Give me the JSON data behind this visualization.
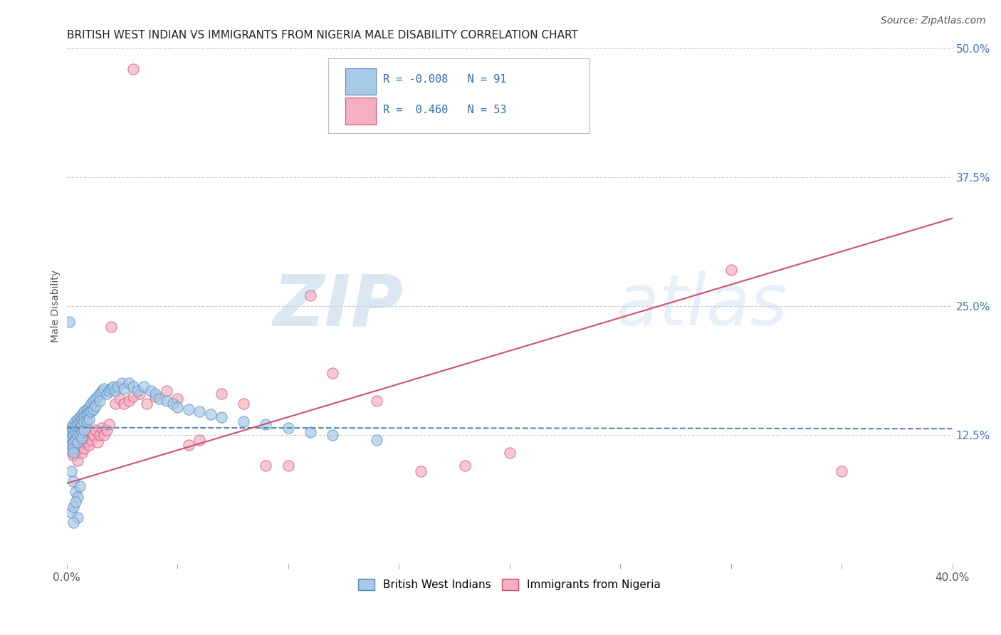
{
  "title": "BRITISH WEST INDIAN VS IMMIGRANTS FROM NIGERIA MALE DISABILITY CORRELATION CHART",
  "source": "Source: ZipAtlas.com",
  "ylabel": "Male Disability",
  "x_min": 0.0,
  "x_max": 0.4,
  "y_min": 0.0,
  "y_max": 0.5,
  "y_ticks_right": [
    0.125,
    0.25,
    0.375,
    0.5
  ],
  "y_tick_labels_right": [
    "12.5%",
    "25.0%",
    "37.5%",
    "50.0%"
  ],
  "color_blue": "#a8c8e8",
  "color_pink": "#f4b0c0",
  "line_blue": "#5588bb",
  "line_pink": "#d05070",
  "watermark_zip": "ZIP",
  "watermark_atlas": "atlas",
  "background": "#ffffff",
  "grid_color": "#cccccc",
  "blue_R": -0.008,
  "blue_N": 91,
  "pink_R": 0.46,
  "pink_N": 53,
  "blue_line_y0": 0.132,
  "blue_line_y1": 0.131,
  "pink_line_y0": 0.078,
  "pink_line_y1": 0.335,
  "blue_scatter_x": [
    0.001,
    0.001,
    0.001,
    0.002,
    0.002,
    0.002,
    0.002,
    0.003,
    0.003,
    0.003,
    0.003,
    0.003,
    0.003,
    0.004,
    0.004,
    0.004,
    0.004,
    0.005,
    0.005,
    0.005,
    0.005,
    0.005,
    0.006,
    0.006,
    0.006,
    0.006,
    0.007,
    0.007,
    0.007,
    0.007,
    0.007,
    0.008,
    0.008,
    0.008,
    0.008,
    0.009,
    0.009,
    0.009,
    0.01,
    0.01,
    0.01,
    0.011,
    0.011,
    0.012,
    0.012,
    0.013,
    0.013,
    0.014,
    0.015,
    0.015,
    0.016,
    0.017,
    0.018,
    0.019,
    0.02,
    0.021,
    0.022,
    0.023,
    0.025,
    0.026,
    0.028,
    0.03,
    0.032,
    0.035,
    0.038,
    0.04,
    0.042,
    0.045,
    0.048,
    0.05,
    0.055,
    0.06,
    0.065,
    0.07,
    0.08,
    0.09,
    0.1,
    0.11,
    0.12,
    0.14,
    0.001,
    0.002,
    0.003,
    0.004,
    0.005,
    0.006,
    0.002,
    0.003,
    0.004,
    0.005,
    0.003
  ],
  "blue_scatter_y": [
    0.13,
    0.125,
    0.118,
    0.132,
    0.128,
    0.122,
    0.115,
    0.135,
    0.13,
    0.125,
    0.118,
    0.112,
    0.108,
    0.138,
    0.133,
    0.128,
    0.12,
    0.14,
    0.135,
    0.13,
    0.125,
    0.118,
    0.142,
    0.137,
    0.132,
    0.125,
    0.145,
    0.14,
    0.135,
    0.128,
    0.122,
    0.148,
    0.143,
    0.138,
    0.13,
    0.15,
    0.145,
    0.138,
    0.152,
    0.147,
    0.14,
    0.155,
    0.148,
    0.158,
    0.15,
    0.16,
    0.153,
    0.162,
    0.165,
    0.158,
    0.168,
    0.17,
    0.165,
    0.168,
    0.17,
    0.172,
    0.168,
    0.172,
    0.175,
    0.17,
    0.175,
    0.172,
    0.168,
    0.172,
    0.168,
    0.165,
    0.16,
    0.158,
    0.155,
    0.152,
    0.15,
    0.148,
    0.145,
    0.142,
    0.138,
    0.135,
    0.132,
    0.128,
    0.125,
    0.12,
    0.235,
    0.09,
    0.08,
    0.07,
    0.065,
    0.075,
    0.05,
    0.055,
    0.06,
    0.045,
    0.04
  ],
  "pink_scatter_x": [
    0.001,
    0.002,
    0.002,
    0.003,
    0.003,
    0.004,
    0.004,
    0.005,
    0.005,
    0.006,
    0.006,
    0.007,
    0.007,
    0.008,
    0.008,
    0.009,
    0.01,
    0.01,
    0.011,
    0.012,
    0.013,
    0.014,
    0.015,
    0.016,
    0.017,
    0.018,
    0.019,
    0.02,
    0.022,
    0.024,
    0.026,
    0.028,
    0.03,
    0.033,
    0.036,
    0.04,
    0.045,
    0.05,
    0.055,
    0.06,
    0.07,
    0.08,
    0.09,
    0.1,
    0.11,
    0.12,
    0.14,
    0.16,
    0.18,
    0.2,
    0.3,
    0.35,
    0.03
  ],
  "pink_scatter_y": [
    0.125,
    0.11,
    0.118,
    0.105,
    0.115,
    0.108,
    0.12,
    0.1,
    0.112,
    0.115,
    0.125,
    0.108,
    0.118,
    0.112,
    0.122,
    0.118,
    0.128,
    0.115,
    0.12,
    0.125,
    0.13,
    0.118,
    0.125,
    0.132,
    0.125,
    0.13,
    0.135,
    0.23,
    0.155,
    0.16,
    0.155,
    0.158,
    0.162,
    0.165,
    0.155,
    0.162,
    0.168,
    0.16,
    0.115,
    0.12,
    0.165,
    0.155,
    0.095,
    0.095,
    0.26,
    0.185,
    0.158,
    0.09,
    0.095,
    0.108,
    0.285,
    0.09,
    0.48
  ]
}
